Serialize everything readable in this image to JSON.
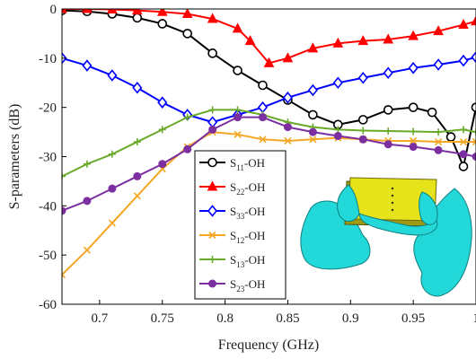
{
  "chart_data": {
    "type": "line",
    "xlabel": "Frequency (GHz)",
    "ylabel": "S-parameters (dB)",
    "xlim": [
      0.67,
      1.0
    ],
    "ylim": [
      -60,
      0
    ],
    "xticks": [
      0.7,
      0.75,
      0.8,
      0.85,
      0.9,
      0.95,
      1
    ],
    "xtick_labels": [
      "0.7",
      "0.75",
      "0.8",
      "0.85",
      "0.9",
      "0.95",
      "1"
    ],
    "yticks": [
      0,
      -10,
      -20,
      -30,
      -40,
      -50,
      -60
    ],
    "ytick_labels": [
      "0",
      "-10",
      "-20",
      "-30",
      "-40",
      "-50",
      "-60"
    ],
    "grid": false,
    "legend_position": "inside-left",
    "series": [
      {
        "name_main": "S",
        "name_sub": "11",
        "name_suffix": "-OH",
        "color": "#000000",
        "marker": "circle",
        "x": [
          0.67,
          0.69,
          0.71,
          0.73,
          0.75,
          0.77,
          0.79,
          0.81,
          0.83,
          0.85,
          0.87,
          0.89,
          0.91,
          0.93,
          0.95,
          0.965,
          0.98,
          0.99,
          1.0
        ],
        "y": [
          -0.3,
          -0.5,
          -1.0,
          -1.8,
          -3.0,
          -5.0,
          -9.0,
          -12.5,
          -15.5,
          -18.5,
          -21.5,
          -23.5,
          -22.5,
          -20.5,
          -20.0,
          -21.0,
          -26.0,
          -32.0,
          -20.0
        ]
      },
      {
        "name_main": "S",
        "name_sub": "22",
        "name_suffix": "-OH",
        "color": "#ff0000",
        "marker": "triangle",
        "x": [
          0.67,
          0.69,
          0.71,
          0.73,
          0.75,
          0.77,
          0.79,
          0.81,
          0.82,
          0.835,
          0.85,
          0.87,
          0.89,
          0.91,
          0.93,
          0.95,
          0.97,
          0.99,
          1.0
        ],
        "y": [
          0.0,
          0.0,
          -0.1,
          -0.3,
          -0.6,
          -1.0,
          -2.0,
          -4.0,
          -6.5,
          -11.0,
          -10.0,
          -8.0,
          -7.0,
          -6.5,
          -6.2,
          -5.5,
          -4.5,
          -3.2,
          -2.5
        ]
      },
      {
        "name_main": "S",
        "name_sub": "33",
        "name_suffix": "-OH",
        "color": "#0000ff",
        "marker": "diamond",
        "x": [
          0.67,
          0.69,
          0.71,
          0.73,
          0.75,
          0.77,
          0.79,
          0.81,
          0.83,
          0.85,
          0.87,
          0.89,
          0.91,
          0.93,
          0.95,
          0.97,
          0.99,
          1.0
        ],
        "y": [
          -10.0,
          -11.5,
          -13.5,
          -16.0,
          -19.0,
          -21.5,
          -23.0,
          -21.5,
          -20.0,
          -18.0,
          -16.5,
          -15.0,
          -14.0,
          -13.0,
          -12.0,
          -11.3,
          -10.5,
          -9.8
        ]
      },
      {
        "name_main": "S",
        "name_sub": "12",
        "name_suffix": "-OH",
        "color": "#f5a623",
        "marker": "x",
        "x": [
          0.67,
          0.69,
          0.71,
          0.73,
          0.75,
          0.77,
          0.79,
          0.81,
          0.83,
          0.85,
          0.87,
          0.89,
          0.91,
          0.93,
          0.95,
          0.97,
          0.99,
          1.0
        ],
        "y": [
          -54.0,
          -49.0,
          -43.5,
          -38.0,
          -32.5,
          -28.0,
          -25.0,
          -25.5,
          -26.5,
          -26.8,
          -26.5,
          -26.2,
          -26.5,
          -26.8,
          -26.8,
          -27.0,
          -27.0,
          -27.0
        ]
      },
      {
        "name_main": "S",
        "name_sub": "13",
        "name_suffix": "-OH",
        "color": "#6aaa2a",
        "marker": "plus",
        "x": [
          0.67,
          0.69,
          0.71,
          0.73,
          0.75,
          0.77,
          0.79,
          0.81,
          0.83,
          0.85,
          0.87,
          0.89,
          0.91,
          0.93,
          0.95,
          0.97,
          0.99,
          1.0
        ],
        "y": [
          -34.0,
          -31.5,
          -29.5,
          -27.0,
          -24.5,
          -22.0,
          -20.5,
          -20.5,
          -21.5,
          -23.0,
          -24.0,
          -24.5,
          -24.7,
          -24.8,
          -24.9,
          -25.0,
          -24.5,
          -25.0
        ]
      },
      {
        "name_main": "S",
        "name_sub": "23",
        "name_suffix": "-OH",
        "color": "#7b2fa0",
        "marker": "circle-filled",
        "x": [
          0.67,
          0.69,
          0.71,
          0.73,
          0.75,
          0.77,
          0.79,
          0.81,
          0.83,
          0.85,
          0.87,
          0.89,
          0.91,
          0.93,
          0.95,
          0.97,
          0.99,
          1.0
        ],
        "y": [
          -41.0,
          -39.0,
          -36.5,
          -34.0,
          -31.5,
          -28.5,
          -24.5,
          -22.0,
          -22.0,
          -24.0,
          -25.0,
          -25.8,
          -26.5,
          -27.5,
          -28.0,
          -28.7,
          -29.5,
          -30.0
        ]
      }
    ]
  }
}
